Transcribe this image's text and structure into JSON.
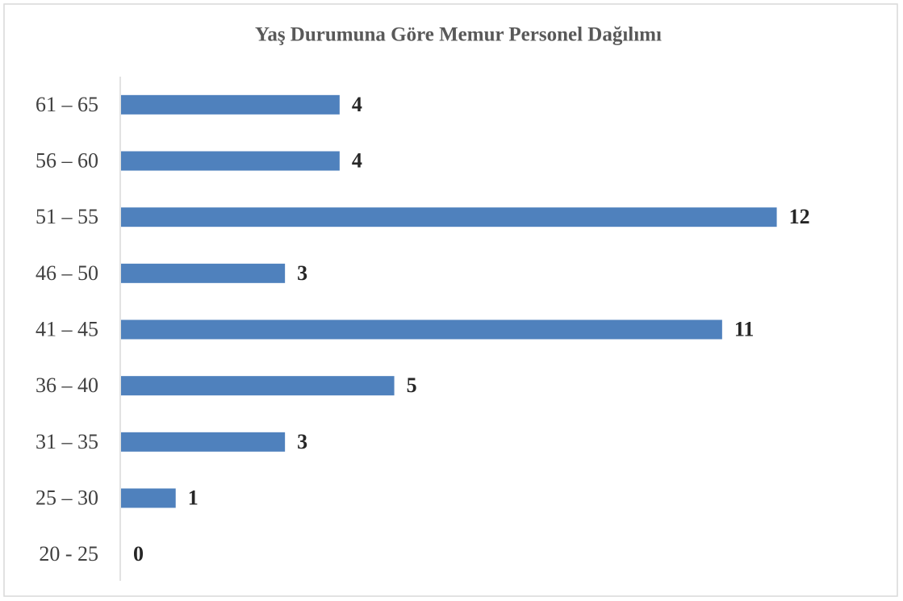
{
  "chart_data": {
    "type": "hbar",
    "title": "Yaş Durumuna Göre Memur Personel Dağılımı",
    "categories": [
      "61 – 65",
      "56 – 60",
      "51 – 55",
      "46 – 50",
      "41 – 45",
      "36 – 40",
      "31 – 35",
      "25 – 30",
      "20 - 25"
    ],
    "values": [
      4,
      4,
      12,
      3,
      11,
      5,
      3,
      1,
      0
    ],
    "color": "#4f81bd",
    "xlim": [
      0,
      14
    ]
  }
}
